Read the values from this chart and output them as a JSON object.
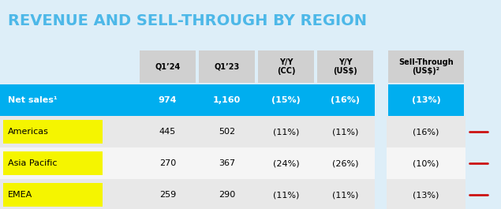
{
  "title": "REVENUE AND SELL-THROUGH BY REGION",
  "title_color": "#4db8e8",
  "title_bg": "#ddeef8",
  "bg_color": "#ddeef8",
  "col_headers": [
    "Q1’24",
    "Q1’23",
    "Y/Y\n(CC)",
    "Y/Y\n(US$)",
    "Sell-Through\n(US$)²"
  ],
  "header_bg": "#d0d0d0",
  "net_sales_bg": "#00aeef",
  "rows": [
    {
      "label": "Net sales¹",
      "values": [
        "974",
        "1,160",
        "(15%)",
        "(16%)",
        "(13%)"
      ],
      "is_total": true
    },
    {
      "label": "Americas",
      "values": [
        "445",
        "502",
        "(11%)",
        "(11%)",
        "(16%)"
      ],
      "row_bg": "#e8e8e8",
      "highlight": "#f5f500",
      "arrow": true
    },
    {
      "label": "Asia Pacific",
      "values": [
        "270",
        "367",
        "(24%)",
        "(26%)",
        "(10%)"
      ],
      "row_bg": "#f5f5f5",
      "highlight": "#f5f500",
      "arrow": true
    },
    {
      "label": "EMEA",
      "values": [
        "259",
        "290",
        "(11%)",
        "(11%)",
        "(13%)"
      ],
      "row_bg": "#e8e8e8",
      "highlight": "#f5f500",
      "arrow": true
    }
  ]
}
